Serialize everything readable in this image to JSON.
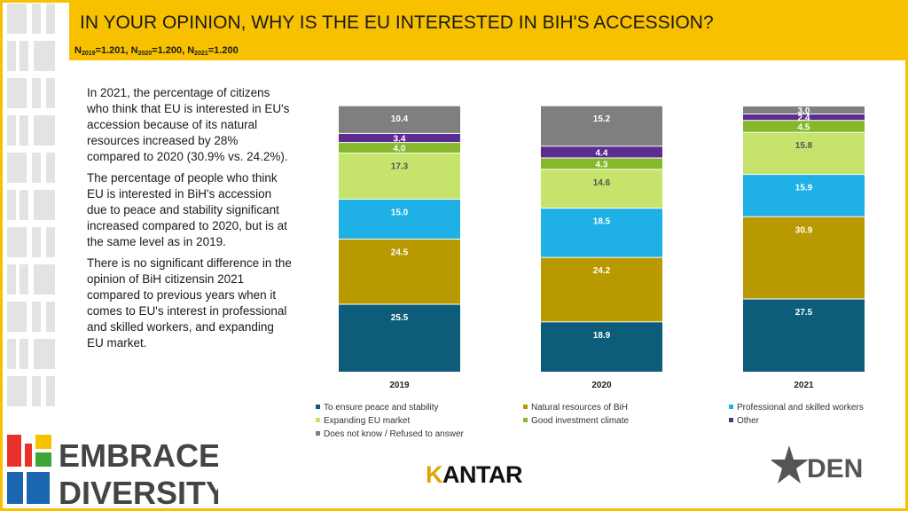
{
  "header": {
    "title": "IN YOUR OPINION, WHY IS THE EU INTERESTED IN BIH'S ACCESSION?",
    "sample": [
      {
        "label": "N",
        "sub": "2019",
        "value": "=1.201, "
      },
      {
        "label": "N",
        "sub": "2020",
        "value": "=1.200, "
      },
      {
        "label": "N",
        "sub": "2021",
        "value": "=1.200"
      }
    ]
  },
  "text": {
    "p1": "In 2021, the percentage of citizens who think that EU is interested in EU's accession because of its natural resources increased by 28% compared to 2020 (30.9% vs. 24.2%).",
    "p2": "The percentage of people who think EU is interested in BiH's accession due to peace and stability significant increased compared to 2020, but is at the same level as in 2019.",
    "p3": "There is no significant difference in the opinion of BiH citizensin 2021 compared to previous years when it comes to EU's interest in professional and skilled workers, and expanding EU market."
  },
  "logos": {
    "left_text_1": "EMBRACE",
    "left_text_2": "DIVERSITY",
    "kantar_k": "K",
    "kantar_rest": "ANTAR",
    "den": "DEN"
  },
  "chart_data": {
    "type": "bar",
    "stacked": true,
    "categories": [
      "2019",
      "2020",
      "2021"
    ],
    "series": [
      {
        "name": "To ensure peace and stability",
        "color": "#0d5c7a",
        "labelColor": "#ffffff",
        "values": [
          25.5,
          18.9,
          27.5
        ]
      },
      {
        "name": "Natural resources of BiH",
        "color": "#b89a00",
        "labelColor": "#ffffff",
        "values": [
          24.5,
          24.2,
          30.9
        ]
      },
      {
        "name": "Professional and skilled workers",
        "color": "#1fb0e6",
        "labelColor": "#ffffff",
        "values": [
          15.0,
          18.5,
          15.9
        ]
      },
      {
        "name": "Expanding EU market",
        "color": "#c6e36b",
        "labelColor": "#555555",
        "values": [
          17.3,
          14.6,
          15.8
        ]
      },
      {
        "name": "Good investment climate",
        "color": "#86b82b",
        "labelColor": "#ffffff",
        "values": [
          4.0,
          4.3,
          4.5
        ]
      },
      {
        "name": "Other",
        "color": "#5c2d91",
        "labelColor": "#ffffff",
        "values": [
          3.4,
          4.4,
          2.4
        ]
      },
      {
        "name": "Does not know / Refused to answer",
        "color": "#7f7f7f",
        "labelColor": "#ffffff",
        "values": [
          10.4,
          15.2,
          3.0
        ]
      }
    ],
    "value_labels": [
      [
        "25.5",
        "24.5",
        "15.0",
        "17.3",
        "4.0",
        "3.4",
        "10.4"
      ],
      [
        "18.9",
        "24.2",
        "18.5",
        "14.6",
        "4.3",
        "4.4",
        "15.2"
      ],
      [
        "27.5",
        "30.9",
        "15.9",
        "15.8",
        "4.5",
        "2.4",
        "3.0"
      ]
    ],
    "legend_position": "bottom",
    "ylim": [
      0,
      100
    ]
  }
}
